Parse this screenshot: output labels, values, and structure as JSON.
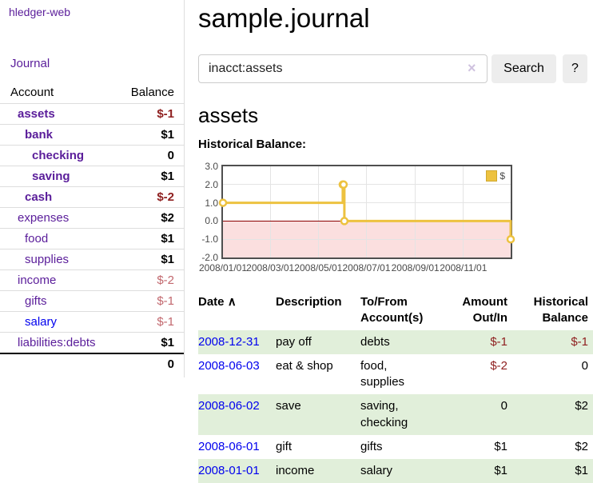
{
  "colors": {
    "link_purple": "#5a1d9a",
    "link_blue": "#0000EE",
    "negative_dark": "#8f2020",
    "negative_light": "#c2686e",
    "row_green": "#e1efda",
    "series_yellow": "#EDC240",
    "negative_region_pink": "#fbdfdf",
    "zero_line_red": "#8b0000"
  },
  "sidebar": {
    "app_title": "hledger-web",
    "journal_link": "Journal",
    "accounts": {
      "header_account": "Account",
      "header_balance": "Balance",
      "rows": [
        {
          "name": "assets",
          "balance": "$-1"
        },
        {
          "name": "bank",
          "balance": "$1"
        },
        {
          "name": "checking",
          "balance": "0"
        },
        {
          "name": "saving",
          "balance": "$1"
        },
        {
          "name": "cash",
          "balance": "$-2"
        },
        {
          "name": "expenses",
          "balance": "$2"
        },
        {
          "name": "food",
          "balance": "$1"
        },
        {
          "name": "supplies",
          "balance": "$1"
        },
        {
          "name": "income",
          "balance": "$-2"
        },
        {
          "name": "gifts",
          "balance": "$-1"
        },
        {
          "name": "salary",
          "balance": "$-1"
        },
        {
          "name": "liabilities:debts",
          "balance": "$1"
        }
      ],
      "total": "0"
    }
  },
  "header": {
    "title": "sample.journal"
  },
  "search": {
    "value": "inacct:assets",
    "clear_icon": "×",
    "search_button": "Search",
    "help_button": "?"
  },
  "account_view": {
    "title": "assets",
    "chart_title": "Historical Balance:"
  },
  "chart_data": {
    "type": "line",
    "step": true,
    "title": "Historical Balance:",
    "series": [
      {
        "name": "$",
        "color": "#EDC240",
        "points": [
          [
            "2008-01-01",
            1
          ],
          [
            "2008-06-01",
            2
          ],
          [
            "2008-06-02",
            2
          ],
          [
            "2008-06-03",
            0
          ],
          [
            "2008-12-31",
            -1
          ]
        ]
      }
    ],
    "x_range": [
      "2008-01-01",
      "2008-12-31"
    ],
    "ylim": [
      -2,
      3
    ],
    "y_ticks": [
      3,
      2,
      1,
      0,
      -1,
      -2
    ],
    "x_ticks": [
      "2008/01/01",
      "2008/03/01",
      "2008/05/01",
      "2008/07/01",
      "2008/09/01",
      "2008/11/01"
    ],
    "grid": true,
    "legend": {
      "label": "$",
      "position": "top-right"
    }
  },
  "register": {
    "headers": {
      "date": "Date",
      "sort_icon": "∧",
      "description": "Description",
      "accounts": "To/From Account(s)",
      "amount": "Amount Out/In",
      "balance": "Historical Balance"
    },
    "rows": [
      {
        "date": "2008-12-31",
        "description": "pay off",
        "accounts": "debts",
        "amount": "$-1",
        "balance": "$-1"
      },
      {
        "date": "2008-06-03",
        "description": "eat & shop",
        "accounts": "food, supplies",
        "amount": "$-2",
        "balance": "0"
      },
      {
        "date": "2008-06-02",
        "description": "save",
        "accounts": "saving, checking",
        "amount": "0",
        "balance": "$2"
      },
      {
        "date": "2008-06-01",
        "description": "gift",
        "accounts": "gifts",
        "amount": "$1",
        "balance": "$2"
      },
      {
        "date": "2008-01-01",
        "description": "income",
        "accounts": "salary",
        "amount": "$1",
        "balance": "$1"
      }
    ]
  }
}
